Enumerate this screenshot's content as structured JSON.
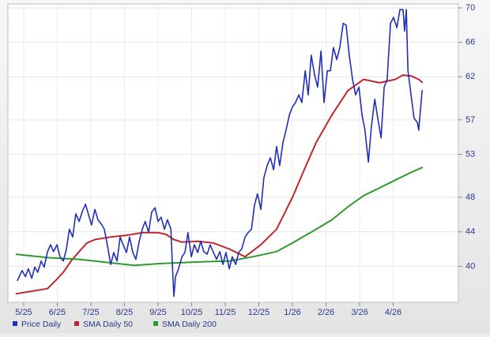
{
  "chart_data": {
    "type": "line",
    "xlim": [
      -0.47,
      12.94
    ],
    "xticks": [
      {
        "value": 0,
        "label": "5/25"
      },
      {
        "value": 1,
        "label": "6/25"
      },
      {
        "value": 2,
        "label": "7/25"
      },
      {
        "value": 3,
        "label": "8/25"
      },
      {
        "value": 4,
        "label": "9/25"
      },
      {
        "value": 5,
        "label": "10/25"
      },
      {
        "value": 6,
        "label": "11/25"
      },
      {
        "value": 7,
        "label": "12/25"
      },
      {
        "value": 8,
        "label": "1/26"
      },
      {
        "value": 9,
        "label": "2/26"
      },
      {
        "value": 10,
        "label": "3/26"
      },
      {
        "value": 11,
        "label": "4/26"
      }
    ],
    "ylim": [
      36,
      70
    ],
    "yticks": [
      40,
      44,
      48,
      53,
      57,
      62,
      66,
      70
    ],
    "grid": true,
    "legend": "bottom-left",
    "series": [
      {
        "name": "Price Daily",
        "color": "#1f2fb8",
        "x": [
          -0.19,
          -0.05,
          0.05,
          0.14,
          0.24,
          0.33,
          0.42,
          0.52,
          0.61,
          0.71,
          0.8,
          0.89,
          0.99,
          1.08,
          1.18,
          1.27,
          1.36,
          1.46,
          1.55,
          1.65,
          1.74,
          1.84,
          1.93,
          2.02,
          2.12,
          2.21,
          2.31,
          2.4,
          2.49,
          2.59,
          2.68,
          2.78,
          2.87,
          2.96,
          3.06,
          3.15,
          3.25,
          3.34,
          3.44,
          3.53,
          3.62,
          3.72,
          3.81,
          3.91,
          4.0,
          4.09,
          4.19,
          4.28,
          4.38,
          4.42,
          4.47,
          4.52,
          4.61,
          4.71,
          4.8,
          4.89,
          4.99,
          5.08,
          5.18,
          5.27,
          5.36,
          5.46,
          5.55,
          5.65,
          5.74,
          5.84,
          5.93,
          6.02,
          6.12,
          6.21,
          6.31,
          6.4,
          6.49,
          6.59,
          6.68,
          6.78,
          6.87,
          6.96,
          7.06,
          7.15,
          7.25,
          7.34,
          7.44,
          7.53,
          7.62,
          7.72,
          7.81,
          7.91,
          8.0,
          8.09,
          8.19,
          8.28,
          8.38,
          8.47,
          8.56,
          8.66,
          8.75,
          8.85,
          8.94,
          9.04,
          9.13,
          9.22,
          9.32,
          9.41,
          9.51,
          9.6,
          9.69,
          9.79,
          9.88,
          9.98,
          10.07,
          10.16,
          10.26,
          10.35,
          10.45,
          10.54,
          10.64,
          10.73,
          10.82,
          10.92,
          11.01,
          11.11,
          11.2,
          11.29,
          11.34,
          11.39,
          11.44,
          11.53,
          11.62,
          11.72,
          11.76,
          11.86,
          11.88
        ],
        "values": [
          38.3,
          39.5,
          38.8,
          39.7,
          38.6,
          39.9,
          39.3,
          40.6,
          39.9,
          41.7,
          42.5,
          41.7,
          42.5,
          41.1,
          40.6,
          42.0,
          44.3,
          43.4,
          46.1,
          45.2,
          46.3,
          47.2,
          46.0,
          44.8,
          46.6,
          45.4,
          44.9,
          44.3,
          42.5,
          40.2,
          41.6,
          40.6,
          43.4,
          42.5,
          41.6,
          43.4,
          41.6,
          40.8,
          42.9,
          44.3,
          45.2,
          43.9,
          46.3,
          46.8,
          45.2,
          45.7,
          44.3,
          45.4,
          44.3,
          40.6,
          36.5,
          38.8,
          39.7,
          41.1,
          41.6,
          43.9,
          41.1,
          42.5,
          41.6,
          42.9,
          41.7,
          41.4,
          42.5,
          41.6,
          40.8,
          41.7,
          40.2,
          41.6,
          39.7,
          41.1,
          40.2,
          41.6,
          42.0,
          43.4,
          43.9,
          44.3,
          47.1,
          48.4,
          46.6,
          50.3,
          51.7,
          52.6,
          51.2,
          53.9,
          51.7,
          54.4,
          55.8,
          57.6,
          58.5,
          59.0,
          59.9,
          59.0,
          62.7,
          59.9,
          64.5,
          62.2,
          60.8,
          65.0,
          59.0,
          62.7,
          62.7,
          65.4,
          64.0,
          65.4,
          68.2,
          68.0,
          64.5,
          61.7,
          59.9,
          60.8,
          57.6,
          55.8,
          52.1,
          56.2,
          59.4,
          57.2,
          54.9,
          60.8,
          61.7,
          68.2,
          68.9,
          67.7,
          69.8,
          69.8,
          67.3,
          69.8,
          62.7,
          59.9,
          57.2,
          56.7,
          55.8,
          60.4,
          60.4
        ]
      },
      {
        "name": "SMA Daily 50",
        "color": "#c0272d",
        "x": [
          -0.24,
          0.24,
          0.71,
          0.94,
          1.18,
          1.41,
          1.65,
          1.88,
          2.12,
          2.59,
          3.06,
          3.53,
          4.0,
          4.24,
          4.47,
          4.71,
          5.18,
          5.65,
          6.12,
          6.59,
          7.06,
          7.53,
          8.0,
          8.35,
          8.71,
          9.18,
          9.65,
          10.12,
          10.59,
          11.06,
          11.29,
          11.53,
          11.76,
          11.88
        ],
        "values": [
          36.8,
          37.1,
          37.4,
          38.3,
          39.3,
          40.6,
          41.7,
          42.7,
          43.1,
          43.4,
          43.6,
          43.9,
          43.9,
          43.7,
          43.1,
          42.8,
          42.9,
          42.7,
          42.0,
          41.1,
          42.5,
          44.3,
          48.0,
          51.2,
          54.4,
          57.6,
          60.4,
          61.7,
          61.3,
          61.7,
          62.2,
          62.1,
          61.7,
          61.3
        ]
      },
      {
        "name": "SMA Daily 200",
        "color": "#2e9a2e",
        "x": [
          -0.24,
          0.71,
          1.65,
          2.59,
          3.29,
          4.0,
          5.18,
          6.12,
          6.82,
          7.53,
          8.0,
          8.71,
          9.18,
          9.65,
          10.12,
          10.59,
          11.06,
          11.53,
          11.88
        ],
        "values": [
          41.4,
          41.0,
          40.8,
          40.4,
          40.1,
          40.3,
          40.5,
          40.6,
          41.1,
          41.7,
          42.7,
          44.3,
          45.4,
          46.9,
          48.2,
          49.1,
          50.0,
          50.9,
          51.5
        ]
      }
    ]
  }
}
